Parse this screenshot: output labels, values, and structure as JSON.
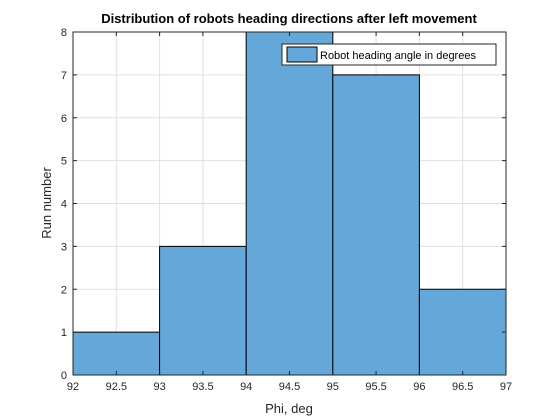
{
  "chart_data": {
    "type": "bar",
    "title": "Distribution of robots heading directions after left movement",
    "xlabel": "Phi, deg",
    "ylabel": "Run number",
    "bin_edges": [
      92,
      93,
      94,
      95,
      96,
      97
    ],
    "values": [
      1,
      3,
      8,
      7,
      2
    ],
    "xlim": [
      92,
      97
    ],
    "ylim": [
      0,
      8
    ],
    "xticks": [
      "92",
      "92.5",
      "93",
      "93.5",
      "94",
      "94.5",
      "95",
      "95.5",
      "96",
      "96.5",
      "97"
    ],
    "yticks": [
      "0",
      "1",
      "2",
      "3",
      "4",
      "5",
      "6",
      "7",
      "8"
    ],
    "grid": true,
    "legend": {
      "placement": "top-right",
      "entries": [
        "Robot heading angle in degrees"
      ]
    },
    "colors": {
      "bar_fill": "#63a8d9",
      "bar_edge": "#000000",
      "grid": "#e0e0e0",
      "axis": "#262626"
    }
  }
}
